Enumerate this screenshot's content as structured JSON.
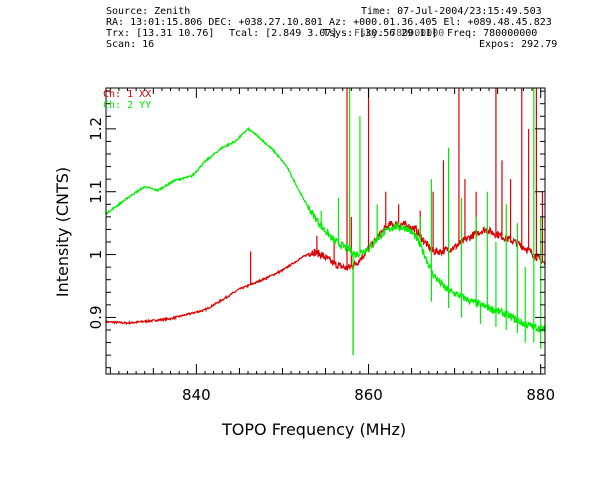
{
  "header": {
    "source": "Source: Zenith",
    "time": "Time: 07-Jul-2004/23:15:49.503",
    "ra_dec": "RA: 13:01:15.806 DEC: +038.27.10.801",
    "az_el": "Az: +000.01.36.405 El: +089.48.45.823",
    "trx": "Trx: [13.31 10.76]",
    "tcal": "Tcal: [2.849 3.07]",
    "tsys": "Tsys: [30.56 29.11]",
    "fsky": "Fsky: 780000000",
    "freq": "Freq: 780000000",
    "scan": "Scan: 16",
    "expos": "Expos: 292.79"
  },
  "colors": {
    "ch1": "#dd0000",
    "ch2": "#00ee00",
    "axis": "#000000"
  },
  "chart_data": {
    "type": "line",
    "xlabel": "TOPO Frequency (MHz)",
    "ylabel": "Intensity (CNTS)",
    "xlim": [
      829.5,
      880.5
    ],
    "ylim": [
      0.81,
      1.265
    ],
    "x_ticks": [
      840,
      860,
      880
    ],
    "y_ticks": [
      0.9,
      1,
      1.1,
      1.2
    ],
    "y_tick_labels": [
      "0.9",
      "1",
      "1.1",
      "1.2"
    ],
    "grid": false,
    "legend": "top-left",
    "series": [
      {
        "name": "Ch: 1 XX",
        "color": "#dd0000",
        "points": [
          [
            829.5,
            0.893
          ],
          [
            832,
            0.891
          ],
          [
            835,
            0.895
          ],
          [
            837,
            0.898
          ],
          [
            839,
            0.905
          ],
          [
            841,
            0.912
          ],
          [
            843,
            0.928
          ],
          [
            845,
            0.945
          ],
          [
            846.3,
            0.952
          ],
          [
            848,
            0.962
          ],
          [
            850,
            0.975
          ],
          [
            852,
            0.993
          ],
          [
            853.5,
            1.005
          ],
          [
            854.5,
            1.0
          ],
          [
            856,
            0.985
          ],
          [
            857.5,
            0.978
          ],
          [
            858.5,
            0.985
          ],
          [
            860,
            1.008
          ],
          [
            861.5,
            1.035
          ],
          [
            862.5,
            1.048
          ],
          [
            864,
            1.048
          ],
          [
            865.5,
            1.04
          ],
          [
            866.5,
            1.02
          ],
          [
            867.5,
            1.005
          ],
          [
            868.5,
            1.005
          ],
          [
            870,
            1.012
          ],
          [
            872,
            1.03
          ],
          [
            873.5,
            1.04
          ],
          [
            875,
            1.032
          ],
          [
            877,
            1.02
          ],
          [
            878.5,
            1.008
          ],
          [
            880.5,
            0.985
          ]
        ],
        "spikes": [
          [
            846.3,
            1.005
          ],
          [
            854,
            1.03
          ],
          [
            856,
            1.02
          ],
          [
            857.5,
            1.3
          ],
          [
            858,
            1.06
          ],
          [
            860,
            1.3
          ],
          [
            862,
            1.1
          ],
          [
            863.5,
            1.08
          ],
          [
            866,
            1.07
          ],
          [
            867.5,
            1.1
          ],
          [
            868.7,
            1.15
          ],
          [
            870.5,
            1.3
          ],
          [
            871.2,
            1.12
          ],
          [
            872.5,
            1.1
          ],
          [
            874.8,
            1.3
          ],
          [
            875.5,
            1.15
          ],
          [
            876.5,
            1.12
          ],
          [
            877.8,
            1.3
          ],
          [
            878.6,
            1.2
          ],
          [
            879.5,
            1.3
          ],
          [
            880.2,
            1.1
          ]
        ]
      },
      {
        "name": "Ch: 2 YY",
        "color": "#00ee00",
        "points": [
          [
            829.5,
            1.065
          ],
          [
            831,
            1.08
          ],
          [
            832.5,
            1.095
          ],
          [
            834,
            1.108
          ],
          [
            835.5,
            1.102
          ],
          [
            837.5,
            1.118
          ],
          [
            839.5,
            1.125
          ],
          [
            841,
            1.148
          ],
          [
            843,
            1.17
          ],
          [
            844.5,
            1.18
          ],
          [
            846,
            1.2
          ],
          [
            847,
            1.19
          ],
          [
            849,
            1.165
          ],
          [
            850.5,
            1.14
          ],
          [
            852,
            1.1
          ],
          [
            853,
            1.075
          ],
          [
            854.5,
            1.045
          ],
          [
            856,
            1.022
          ],
          [
            857.5,
            1.01
          ],
          [
            858.5,
            1.0
          ],
          [
            860,
            1.01
          ],
          [
            861.5,
            1.032
          ],
          [
            863,
            1.045
          ],
          [
            864.5,
            1.042
          ],
          [
            865.5,
            1.028
          ],
          [
            866.5,
            1.0
          ],
          [
            867.5,
            0.968
          ],
          [
            869,
            0.945
          ],
          [
            870.5,
            0.935
          ],
          [
            872,
            0.925
          ],
          [
            874,
            0.915
          ],
          [
            876,
            0.905
          ],
          [
            878,
            0.89
          ],
          [
            880.5,
            0.88
          ]
        ],
        "spikes": [
          [
            854.5,
            1.07
          ],
          [
            856.5,
            1.09
          ],
          [
            857.8,
            1.3
          ],
          [
            858.2,
            0.84
          ],
          [
            859,
            1.22
          ],
          [
            861,
            1.08
          ],
          [
            866,
            1.06
          ],
          [
            867.3,
            1.12
          ],
          [
            869.3,
            1.17
          ],
          [
            870.8,
            1.09
          ],
          [
            872.5,
            1.06
          ],
          [
            873.8,
            1.1
          ],
          [
            874.8,
            1.02
          ],
          [
            876,
            1.08
          ],
          [
            877.3,
            1.05
          ],
          [
            878.2,
            0.98
          ],
          [
            879.2,
            1.3
          ],
          [
            880,
            1.06
          ]
        ],
        "dips": [
          [
            858.2,
            0.84
          ],
          [
            867.3,
            0.925
          ],
          [
            869.3,
            0.915
          ],
          [
            870.8,
            0.9
          ],
          [
            873,
            0.89
          ],
          [
            874.8,
            0.885
          ],
          [
            876,
            0.88
          ],
          [
            877.3,
            0.875
          ],
          [
            878.2,
            0.86
          ],
          [
            879.2,
            0.86
          ],
          [
            880,
            0.85
          ]
        ]
      }
    ]
  }
}
